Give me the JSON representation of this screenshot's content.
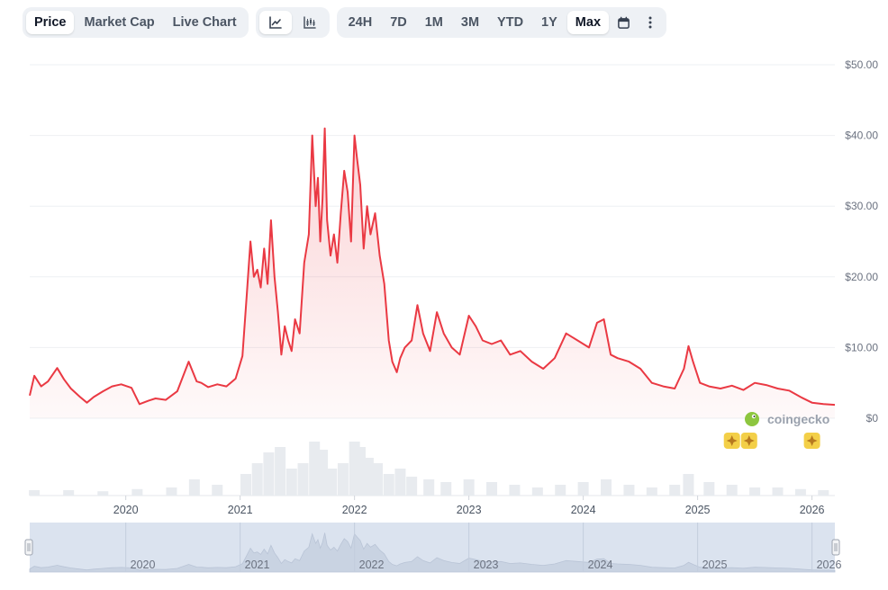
{
  "toolbar": {
    "metric_tabs": [
      {
        "label": "Price",
        "active": true
      },
      {
        "label": "Market Cap",
        "active": false
      },
      {
        "label": "Live Chart",
        "active": false
      }
    ],
    "chart_type_icons": [
      "line-chart-icon",
      "candlestick-chart-icon"
    ],
    "ranges": [
      {
        "label": "24H",
        "active": false
      },
      {
        "label": "7D",
        "active": false
      },
      {
        "label": "1M",
        "active": false
      },
      {
        "label": "3M",
        "active": false
      },
      {
        "label": "YTD",
        "active": false
      },
      {
        "label": "1Y",
        "active": false
      },
      {
        "label": "Max",
        "active": true
      }
    ],
    "extra_icons": [
      "calendar-icon",
      "more-options-icon"
    ]
  },
  "colors": {
    "line": "#ea3943",
    "grid": "#eef0f3",
    "volume": "#e8ebef",
    "navigator_bg": "#dbe3ef",
    "navigator_area": "#c9d3e2",
    "event_marker": "#f3cf48"
  },
  "watermark": {
    "text": "coingecko",
    "icon": "coingecko-logo-icon"
  },
  "chart_data": {
    "type": "line",
    "y_tick_labels": [
      "$50.00",
      "$40.00",
      "$30.00",
      "$20.00",
      "$10.00",
      "$0"
    ],
    "y_ticks": [
      50,
      40,
      30,
      20,
      10,
      0
    ],
    "ylim": [
      0,
      50
    ],
    "x_tick_labels": [
      "2020",
      "2021",
      "2022",
      "2023",
      "2024",
      "2025",
      "2026"
    ],
    "xlim": [
      2019.16,
      2026.2
    ],
    "grid": true,
    "legend": "none",
    "series": [
      {
        "x": [
          2019.16,
          2019.2,
          2019.26,
          2019.32,
          2019.4,
          2019.46,
          2019.52,
          2019.6,
          2019.66,
          2019.72,
          2019.8,
          2019.88,
          2019.96,
          2020.05,
          2020.12,
          2020.2,
          2020.26,
          2020.35,
          2020.45,
          2020.55,
          2020.62,
          2020.66,
          2020.72,
          2020.8,
          2020.88,
          2020.96,
          2021.02,
          2021.06,
          2021.09,
          2021.12,
          2021.15,
          2021.18,
          2021.21,
          2021.24,
          2021.27,
          2021.3,
          2021.33,
          2021.36,
          2021.39,
          2021.42,
          2021.45,
          2021.48,
          2021.52,
          2021.56,
          2021.6,
          2021.63,
          2021.66,
          2021.68,
          2021.7,
          2021.72,
          2021.74,
          2021.76,
          2021.79,
          2021.82,
          2021.85,
          2021.88,
          2021.91,
          2021.94,
          2021.97,
          2022.0,
          2022.02,
          2022.05,
          2022.08,
          2022.11,
          2022.14,
          2022.18,
          2022.22,
          2022.26,
          2022.3,
          2022.33,
          2022.37,
          2022.4,
          2022.44,
          2022.5,
          2022.55,
          2022.6,
          2022.66,
          2022.72,
          2022.78,
          2022.85,
          2022.92,
          2023.0,
          2023.06,
          2023.12,
          2023.2,
          2023.28,
          2023.36,
          2023.45,
          2023.55,
          2023.65,
          2023.75,
          2023.85,
          2023.95,
          2024.05,
          2024.12,
          2024.18,
          2024.24,
          2024.3,
          2024.4,
          2024.5,
          2024.6,
          2024.7,
          2024.8,
          2024.88,
          2024.92,
          2024.96,
          2025.02,
          2025.1,
          2025.2,
          2025.3,
          2025.4,
          2025.5,
          2025.6,
          2025.7,
          2025.8,
          2025.9,
          2026.0,
          2026.1,
          2026.2
        ],
        "y": [
          3.2,
          6.0,
          4.5,
          5.2,
          7.1,
          5.5,
          4.2,
          3.0,
          2.2,
          3.0,
          3.8,
          4.5,
          4.8,
          4.3,
          2.0,
          2.5,
          2.8,
          2.6,
          3.8,
          8.0,
          5.2,
          5.0,
          4.4,
          4.8,
          4.5,
          5.6,
          8.8,
          18.0,
          25.0,
          20.0,
          21.0,
          18.5,
          24.0,
          19.0,
          28.0,
          20.0,
          15.0,
          9.0,
          13.0,
          11.0,
          9.5,
          14.0,
          12.0,
          22.0,
          26.0,
          40.0,
          30.0,
          34.0,
          25.0,
          31.0,
          41.0,
          28.0,
          23.0,
          26.0,
          22.0,
          29.0,
          35.0,
          32.0,
          25.0,
          40.0,
          37.0,
          33.0,
          24.0,
          30.0,
          26.0,
          29.0,
          23.0,
          19.0,
          11.0,
          8.0,
          6.5,
          8.5,
          10.0,
          11.0,
          16.0,
          12.0,
          9.5,
          15.0,
          12.0,
          10.0,
          9.0,
          14.5,
          13.0,
          11.0,
          10.5,
          11.0,
          9.0,
          9.5,
          8.0,
          7.0,
          8.5,
          12.0,
          11.0,
          10.0,
          13.5,
          14.0,
          9.0,
          8.5,
          8.0,
          7.0,
          5.0,
          4.5,
          4.2,
          7.0,
          10.2,
          8.0,
          5.0,
          4.5,
          4.2,
          4.6,
          4.0,
          5.0,
          4.7,
          4.2,
          3.9,
          3.0,
          2.2,
          2.0,
          1.9
        ]
      }
    ],
    "volume": {
      "x": [
        2019.2,
        2019.5,
        2019.8,
        2020.1,
        2020.4,
        2020.6,
        2020.8,
        2021.05,
        2021.15,
        2021.25,
        2021.35,
        2021.45,
        2021.55,
        2021.65,
        2021.72,
        2021.8,
        2021.9,
        2022.0,
        2022.05,
        2022.12,
        2022.2,
        2022.3,
        2022.4,
        2022.5,
        2022.65,
        2022.8,
        2023.0,
        2023.2,
        2023.4,
        2023.6,
        2023.8,
        2024.0,
        2024.2,
        2024.4,
        2024.6,
        2024.8,
        2024.92,
        2025.1,
        2025.3,
        2025.5,
        2025.7,
        2025.9,
        2026.1
      ],
      "values": [
        0.1,
        0.1,
        0.08,
        0.12,
        0.15,
        0.3,
        0.2,
        0.4,
        0.6,
        0.8,
        0.9,
        0.5,
        0.6,
        1.0,
        0.85,
        0.5,
        0.6,
        1.0,
        0.9,
        0.7,
        0.6,
        0.4,
        0.5,
        0.35,
        0.3,
        0.25,
        0.3,
        0.25,
        0.2,
        0.15,
        0.2,
        0.25,
        0.3,
        0.2,
        0.15,
        0.2,
        0.4,
        0.25,
        0.2,
        0.15,
        0.15,
        0.12,
        0.1
      ]
    },
    "event_markers": [
      2025.3,
      2025.45,
      2026.0
    ]
  },
  "navigator": {
    "x_tick_labels": [
      "2020",
      "2021",
      "2022",
      "2023",
      "2024",
      "2025",
      "2026"
    ]
  }
}
